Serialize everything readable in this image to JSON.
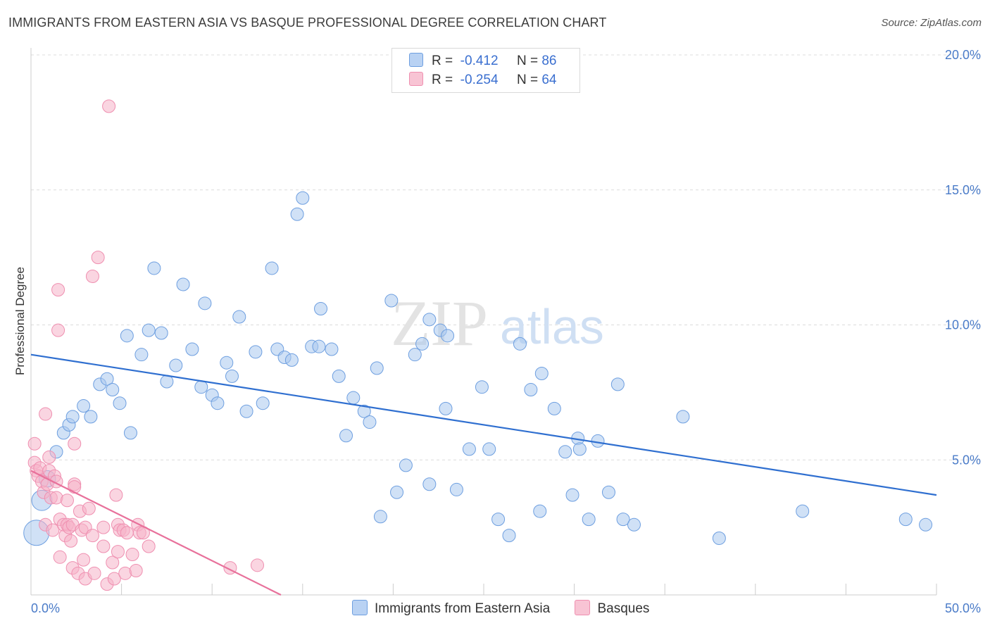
{
  "header": {
    "title": "IMMIGRANTS FROM EASTERN ASIA VS BASQUE PROFESSIONAL DEGREE CORRELATION CHART",
    "source": "Source: ZipAtlas.com"
  },
  "watermark": {
    "zip": "ZIP",
    "atlas": "atlas"
  },
  "colors": {
    "blue_fill": "#aac8ef",
    "blue_stroke": "#6e9fe0",
    "blue_line": "#2f6fd0",
    "pink_fill": "#f6b3c8",
    "pink_stroke": "#ef8fb0",
    "pink_line": "#e8719b",
    "grid": "#dcdcdc",
    "tick_text": "#4a7bc8"
  },
  "legend": {
    "rows": [
      {
        "r_label": "R =",
        "r_value": "-0.412",
        "n_label": "N =",
        "n_value": "86"
      },
      {
        "r_label": "R =",
        "r_value": "-0.254",
        "n_label": "N =",
        "n_value": "64"
      }
    ]
  },
  "bottom_legend": {
    "series1": "Immigrants from Eastern Asia",
    "series2": "Basques"
  },
  "chart_data": {
    "type": "scatter",
    "ylabel": "Professional Degree",
    "xlim": [
      0,
      50
    ],
    "ylim": [
      0,
      20
    ],
    "x_tick_labels": [
      "0.0%",
      "50.0%"
    ],
    "y_tick_labels": [
      {
        "value": 5,
        "label": "5.0%"
      },
      {
        "value": 10,
        "label": "10.0%"
      },
      {
        "value": 15,
        "label": "15.0%"
      },
      {
        "value": 20,
        "label": "20.0%"
      }
    ],
    "grid": true,
    "series": [
      {
        "name": "Immigrants from Eastern Asia",
        "trend": {
          "x": [
            0,
            50
          ],
          "y": [
            8.9,
            3.7
          ]
        },
        "points": [
          [
            0.3,
            2.3,
            2
          ],
          [
            0.6,
            3.5,
            1.6
          ],
          [
            0.9,
            4.3,
            1.3
          ],
          [
            1.4,
            5.3,
            1
          ],
          [
            1.8,
            6.0,
            1
          ],
          [
            2.1,
            6.3,
            1
          ],
          [
            2.3,
            6.6,
            1
          ],
          [
            2.9,
            7.0,
            1
          ],
          [
            3.3,
            6.6,
            1
          ],
          [
            3.8,
            7.8,
            1
          ],
          [
            4.2,
            8.0,
            1
          ],
          [
            4.5,
            7.6,
            1
          ],
          [
            4.9,
            7.1,
            1
          ],
          [
            5.3,
            9.6,
            1
          ],
          [
            5.5,
            6.0,
            1
          ],
          [
            6.1,
            8.9,
            1
          ],
          [
            6.5,
            9.8,
            1
          ],
          [
            6.8,
            12.1,
            1
          ],
          [
            7.2,
            9.7,
            1
          ],
          [
            7.5,
            7.9,
            1
          ],
          [
            8.0,
            8.5,
            1
          ],
          [
            8.4,
            11.5,
            1
          ],
          [
            8.9,
            9.1,
            1
          ],
          [
            9.4,
            7.7,
            1
          ],
          [
            9.6,
            10.8,
            1
          ],
          [
            10.0,
            7.4,
            1
          ],
          [
            10.3,
            7.1,
            1
          ],
          [
            10.8,
            8.6,
            1
          ],
          [
            11.1,
            8.1,
            1
          ],
          [
            11.5,
            10.3,
            1
          ],
          [
            11.9,
            6.8,
            1
          ],
          [
            12.4,
            9.0,
            1
          ],
          [
            12.8,
            7.1,
            1
          ],
          [
            13.3,
            12.1,
            1
          ],
          [
            13.6,
            9.1,
            1
          ],
          [
            14.0,
            8.8,
            1
          ],
          [
            14.4,
            8.7,
            1
          ],
          [
            14.7,
            14.1,
            1
          ],
          [
            15.0,
            14.7,
            1
          ],
          [
            15.5,
            9.2,
            1
          ],
          [
            15.9,
            9.2,
            1
          ],
          [
            16.0,
            10.6,
            1
          ],
          [
            16.6,
            9.1,
            1
          ],
          [
            17.0,
            8.1,
            1
          ],
          [
            17.4,
            5.9,
            1
          ],
          [
            17.8,
            7.3,
            1
          ],
          [
            18.4,
            6.8,
            1
          ],
          [
            18.7,
            6.4,
            1
          ],
          [
            19.1,
            8.4,
            1
          ],
          [
            19.3,
            2.9,
            1
          ],
          [
            19.9,
            10.9,
            1
          ],
          [
            20.2,
            3.8,
            1
          ],
          [
            20.7,
            4.8,
            1
          ],
          [
            21.2,
            8.9,
            1
          ],
          [
            21.6,
            9.3,
            1
          ],
          [
            22.0,
            10.2,
            1
          ],
          [
            22.0,
            4.1,
            1
          ],
          [
            22.6,
            9.8,
            1
          ],
          [
            22.9,
            6.9,
            1
          ],
          [
            23.0,
            9.6,
            1
          ],
          [
            23.5,
            3.9,
            1
          ],
          [
            24.2,
            5.4,
            1
          ],
          [
            24.9,
            7.7,
            1
          ],
          [
            25.3,
            5.4,
            1
          ],
          [
            25.8,
            2.8,
            1
          ],
          [
            26.4,
            2.2,
            1
          ],
          [
            27.0,
            9.3,
            1
          ],
          [
            27.6,
            7.6,
            1
          ],
          [
            28.1,
            3.1,
            1
          ],
          [
            28.2,
            8.2,
            1
          ],
          [
            28.9,
            6.9,
            1
          ],
          [
            29.5,
            5.3,
            1
          ],
          [
            29.9,
            3.7,
            1
          ],
          [
            30.2,
            5.8,
            1
          ],
          [
            30.3,
            5.4,
            1
          ],
          [
            30.8,
            2.8,
            1
          ],
          [
            31.3,
            5.7,
            1
          ],
          [
            31.9,
            3.8,
            1
          ],
          [
            32.4,
            7.8,
            1
          ],
          [
            32.7,
            2.8,
            1
          ],
          [
            33.3,
            2.6,
            1
          ],
          [
            36.0,
            6.6,
            1
          ],
          [
            38.0,
            2.1,
            1
          ],
          [
            42.6,
            3.1,
            1
          ],
          [
            48.3,
            2.8,
            1
          ],
          [
            49.4,
            2.6,
            1
          ]
        ]
      },
      {
        "name": "Basques",
        "trend": {
          "x": [
            0,
            13.8
          ],
          "y": [
            4.6,
            0.0
          ]
        },
        "points": [
          [
            0.2,
            5.6,
            1
          ],
          [
            0.2,
            4.9,
            1
          ],
          [
            0.3,
            4.6,
            1
          ],
          [
            0.4,
            4.4,
            1
          ],
          [
            0.5,
            4.7,
            1
          ],
          [
            0.6,
            4.2,
            1
          ],
          [
            0.7,
            3.8,
            1
          ],
          [
            0.8,
            6.7,
            1
          ],
          [
            0.8,
            2.6,
            1
          ],
          [
            0.9,
            4.1,
            1
          ],
          [
            1.0,
            4.6,
            1
          ],
          [
            1.0,
            5.1,
            1
          ],
          [
            1.1,
            3.6,
            1
          ],
          [
            1.2,
            2.4,
            1
          ],
          [
            1.3,
            4.4,
            1
          ],
          [
            1.4,
            4.2,
            1
          ],
          [
            1.4,
            3.6,
            1
          ],
          [
            1.5,
            11.3,
            1
          ],
          [
            1.5,
            9.8,
            1
          ],
          [
            1.6,
            2.8,
            1
          ],
          [
            1.6,
            1.4,
            1
          ],
          [
            1.8,
            2.6,
            1
          ],
          [
            1.9,
            2.2,
            1
          ],
          [
            2.0,
            3.5,
            1
          ],
          [
            2.0,
            2.6,
            1
          ],
          [
            2.1,
            2.5,
            1
          ],
          [
            2.2,
            2.0,
            1
          ],
          [
            2.3,
            1.0,
            1
          ],
          [
            2.3,
            2.6,
            1
          ],
          [
            2.4,
            4.1,
            1
          ],
          [
            2.4,
            4.0,
            1
          ],
          [
            2.4,
            5.6,
            1
          ],
          [
            2.6,
            0.8,
            1
          ],
          [
            2.7,
            3.1,
            1
          ],
          [
            2.8,
            2.4,
            1
          ],
          [
            2.9,
            1.3,
            1
          ],
          [
            3.0,
            0.6,
            1
          ],
          [
            3.0,
            2.5,
            1
          ],
          [
            3.2,
            3.2,
            1
          ],
          [
            3.4,
            2.2,
            1
          ],
          [
            3.5,
            0.8,
            1
          ],
          [
            3.4,
            11.8,
            1
          ],
          [
            3.7,
            12.5,
            1
          ],
          [
            4.0,
            1.8,
            1
          ],
          [
            4.2,
            0.4,
            1
          ],
          [
            4.3,
            18.1,
            1
          ],
          [
            4.5,
            1.2,
            1
          ],
          [
            4.6,
            0.6,
            1
          ],
          [
            4.7,
            3.7,
            1
          ],
          [
            4.8,
            1.6,
            1
          ],
          [
            4.8,
            2.6,
            1
          ],
          [
            4.9,
            2.4,
            1
          ],
          [
            5.1,
            2.4,
            1
          ],
          [
            5.2,
            0.8,
            1
          ],
          [
            5.3,
            2.3,
            1
          ],
          [
            5.6,
            1.5,
            1
          ],
          [
            5.8,
            0.9,
            1
          ],
          [
            5.9,
            2.6,
            1
          ],
          [
            6.0,
            2.3,
            1
          ],
          [
            6.2,
            2.3,
            1
          ],
          [
            6.5,
            1.8,
            1
          ],
          [
            11.0,
            1.0,
            1
          ],
          [
            12.5,
            1.1,
            1
          ],
          [
            4.0,
            2.5,
            1
          ]
        ]
      }
    ]
  }
}
